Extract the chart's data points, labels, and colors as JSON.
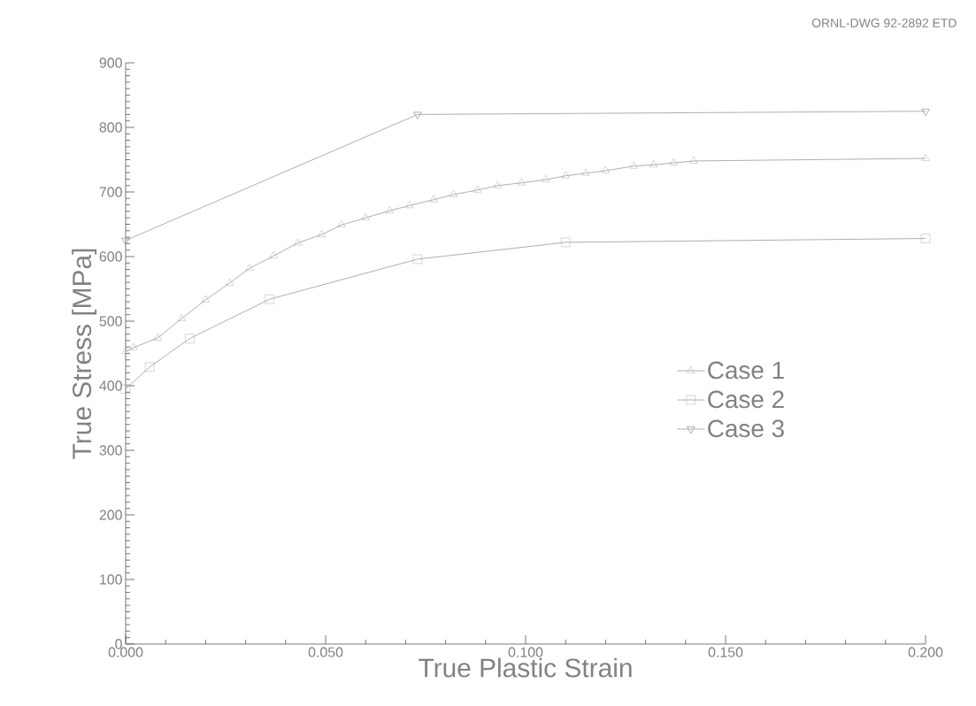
{
  "chart_data": {
    "type": "line",
    "xlabel": "True Plastic Strain",
    "ylabel": "True Stress [MPa]",
    "annotations": [
      "ORNL-DWG 92-2892 ETD"
    ],
    "xlim": [
      0,
      0.2
    ],
    "ylim": [
      0,
      900
    ],
    "xticks": [
      {
        "value": 0,
        "label": "0.000"
      },
      {
        "value": 0.05,
        "label": "0.050"
      },
      {
        "value": 0.1,
        "label": "0.100"
      },
      {
        "value": 0.15,
        "label": "0.150"
      },
      {
        "value": 0.2,
        "label": "0.200"
      }
    ],
    "yticks": [
      0,
      100,
      200,
      300,
      400,
      500,
      600,
      700,
      800,
      900
    ],
    "grid": false,
    "legend": "right",
    "line_style": "solid",
    "series": [
      {
        "name": "Case 1",
        "color": "#9a9a9a",
        "marker": "triangle",
        "x": [
          0,
          0.002,
          0.008,
          0.014,
          0.02,
          0.026,
          0.031,
          0.037,
          0.043,
          0.049,
          0.054,
          0.06,
          0.066,
          0.071,
          0.077,
          0.082,
          0.088,
          0.093,
          0.099,
          0.105,
          0.11,
          0.115,
          0.12,
          0.127,
          0.132,
          0.137,
          0.142,
          0.2
        ],
        "values": [
          453,
          459,
          474,
          504,
          533,
          559,
          582,
          601,
          621,
          634,
          649,
          660,
          671,
          679,
          688,
          696,
          703,
          710,
          714,
          719,
          725,
          729,
          733,
          740,
          742,
          745,
          748,
          752
        ]
      },
      {
        "name": "Case 2",
        "color": "#9a9a9a",
        "marker": "square",
        "x": [
          0,
          0.006,
          0.016,
          0.036,
          0.073,
          0.11,
          0.2
        ],
        "values": [
          395,
          429,
          473,
          534,
          596,
          622,
          628
        ]
      },
      {
        "name": "Case 3",
        "color": "#9a9a9a",
        "marker": "triangle down",
        "x": [
          0,
          0.073,
          0.2
        ],
        "values": [
          625,
          820,
          825
        ]
      }
    ]
  }
}
